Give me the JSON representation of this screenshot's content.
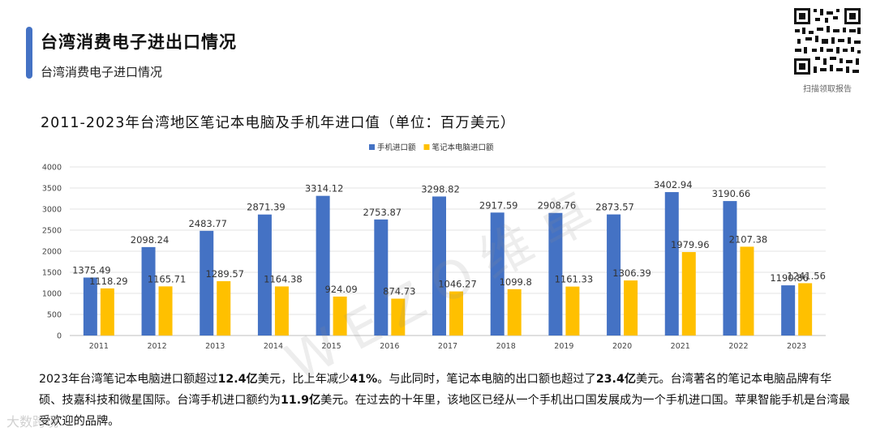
{
  "header": {
    "title": "台湾消费电子进出口情况",
    "subtitle": "台湾消费电子进口情况"
  },
  "qr": {
    "caption": "扫描领取报告"
  },
  "colors": {
    "accent": "#4472c4",
    "phone": "#4472c4",
    "laptop": "#ffc000"
  },
  "watermark": "WEZO维卓",
  "bottom_logo": "大数跨境",
  "chart_data": {
    "type": "bar",
    "title": "2011-2023年台湾地区笔记本电脑及手机年进口值（单位：百万美元）",
    "categories": [
      "2011",
      "2012",
      "2013",
      "2014",
      "2015",
      "2016",
      "2017",
      "2018",
      "2019",
      "2020",
      "2021",
      "2022",
      "2023"
    ],
    "series": [
      {
        "name": "手机进口额",
        "color": "#4472c4",
        "values": [
          1375.49,
          2098.24,
          2483.77,
          2871.39,
          3314.12,
          2753.87,
          3298.82,
          2917.59,
          2908.76,
          2873.57,
          3402.94,
          3190.66,
          1190.86
        ]
      },
      {
        "name": "笔记本电脑进口额",
        "color": "#ffc000",
        "values": [
          1118.29,
          1165.71,
          1289.57,
          1164.38,
          924.09,
          874.73,
          1046.27,
          1099.8,
          1161.33,
          1306.39,
          1979.96,
          2107.38,
          1241.56
        ]
      }
    ],
    "ylim": [
      0,
      4000
    ],
    "yticks": [
      0,
      500,
      1000,
      1500,
      2000,
      2500,
      3000,
      3500,
      4000
    ],
    "grid": true,
    "legend": "top-center"
  },
  "summary": {
    "p1": "2023年台湾笔记本电脑进口额超过",
    "b1": "12.4亿",
    "p2": "美元，比上年减少",
    "b2": "41%",
    "p3": "。与此同时，笔记本电脑的出口额也超过了",
    "b3": "23.4亿",
    "p4": "美元。台湾著名的笔记本电脑品牌有华硕、技嘉科技和微星国际。台湾手机进口额约为",
    "b4": "11.9亿",
    "p5": "美元。在过去的十年里，该地区已经从一个手机出口国发展成为一个手机进口国。苹果智能手机是台湾最受欢迎的品牌。"
  }
}
